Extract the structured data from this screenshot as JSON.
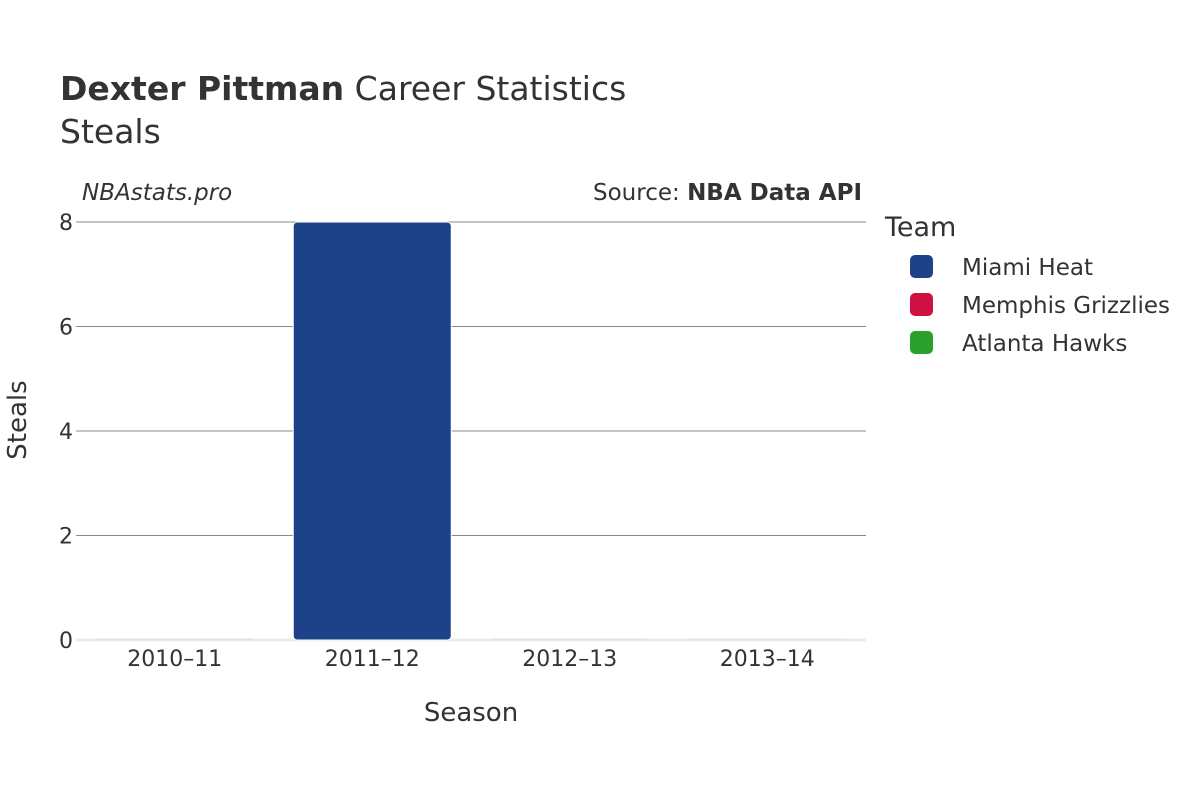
{
  "header": {
    "title_bold": "Dexter Pittman",
    "title_rest": " Career Statistics",
    "subtitle": "Steals"
  },
  "watermark": "NBAstats.pro",
  "source": {
    "prefix": "Source: ",
    "name": "NBA Data API"
  },
  "legend": {
    "title": "Team",
    "items": [
      {
        "label": "Miami Heat",
        "color": "#1d428a"
      },
      {
        "label": "Memphis Grizzlies",
        "color": "#ce1141"
      },
      {
        "label": "Atlanta Hawks",
        "color": "#2ca02c"
      }
    ]
  },
  "chart_data": {
    "type": "bar",
    "categories": [
      "2010–11",
      "2011–12",
      "2012–13",
      "2013–14"
    ],
    "series": [
      {
        "name": "Miami Heat",
        "values": [
          0,
          8,
          null,
          null
        ],
        "color": "#1d428a"
      },
      {
        "name": "Memphis Grizzlies",
        "values": [
          null,
          null,
          0,
          null
        ],
        "color": "#ce1141"
      },
      {
        "name": "Atlanta Hawks",
        "values": [
          null,
          null,
          null,
          0
        ],
        "color": "#2ca02c"
      }
    ],
    "xlabel": "Season",
    "ylabel": "Steals",
    "ylim": [
      0,
      8
    ],
    "yticks": [
      0,
      2,
      4,
      6,
      8
    ],
    "grid": true,
    "legend_position": "right"
  }
}
